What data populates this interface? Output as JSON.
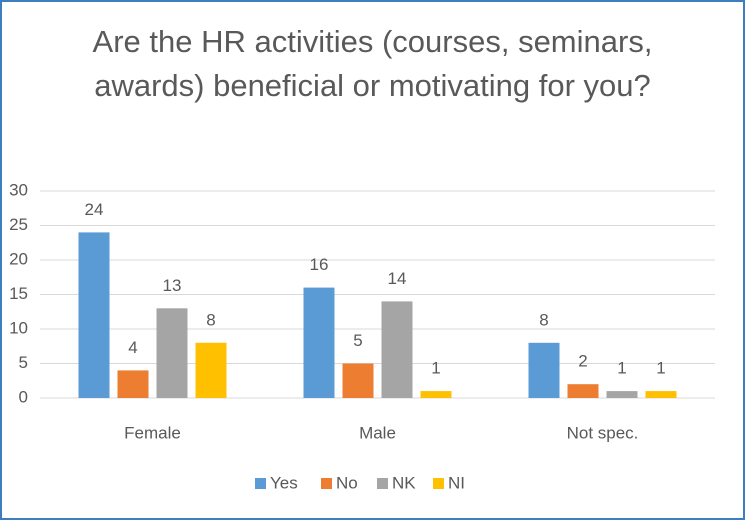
{
  "chart_data": {
    "type": "bar",
    "title": "Are the HR activities (courses, seminars, awards) beneficial or motivating for you?",
    "categories": [
      "Female",
      "Male",
      "Not spec."
    ],
    "series": [
      {
        "name": "Yes",
        "color": "#5b9bd5",
        "values": [
          24,
          16,
          8
        ]
      },
      {
        "name": "No",
        "color": "#ed7d31",
        "values": [
          4,
          5,
          2
        ]
      },
      {
        "name": "NK",
        "color": "#a5a5a5",
        "values": [
          13,
          14,
          1
        ]
      },
      {
        "name": "NI",
        "color": "#ffc000",
        "values": [
          8,
          1,
          1
        ]
      }
    ],
    "ylim": [
      0,
      30
    ],
    "yticks": [
      0,
      5,
      10,
      15,
      20,
      25,
      30
    ],
    "grid": true,
    "legend": "bottom"
  }
}
